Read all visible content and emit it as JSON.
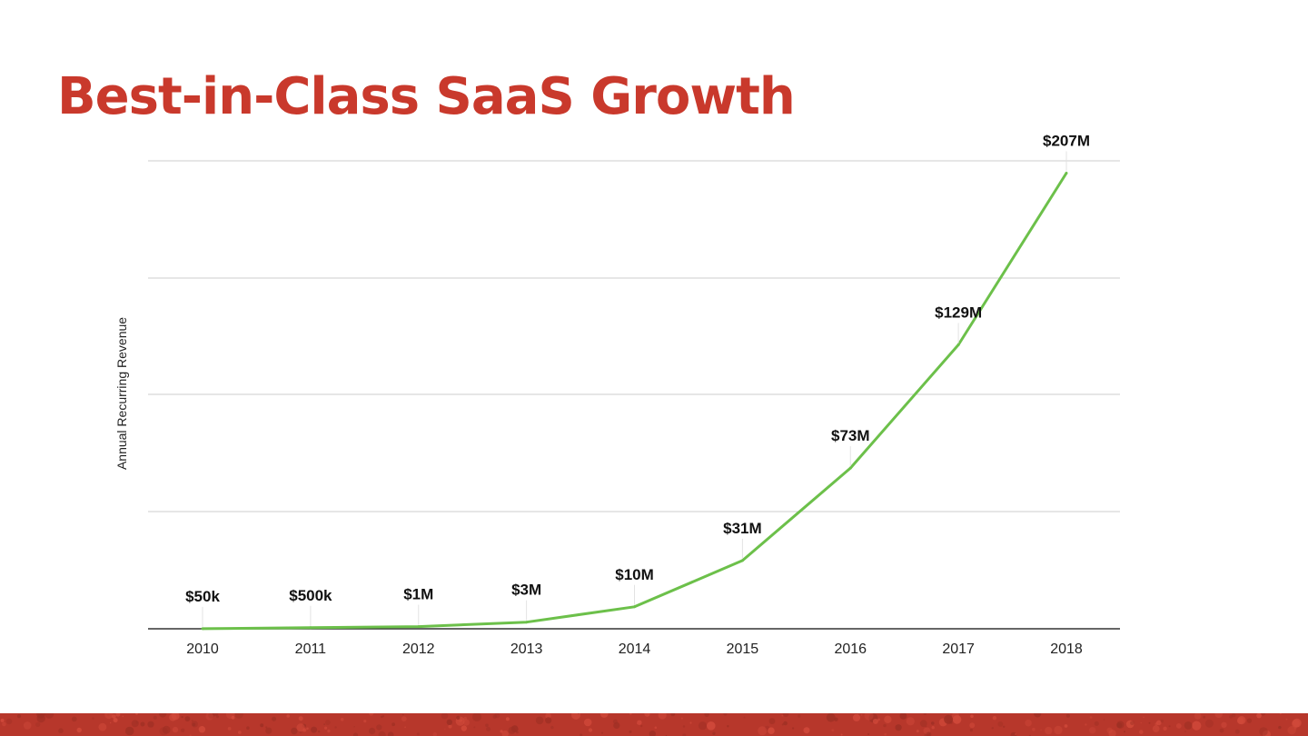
{
  "slide": {
    "title": "Best-in-Class SaaS Growth"
  },
  "colors": {
    "title": "#c9392c",
    "line": "#6cc04a",
    "grid": "#cccccc",
    "axis": "#333333",
    "footer": "#b7372b"
  },
  "chart_data": {
    "type": "line",
    "title": "",
    "xlabel": "",
    "ylabel": "Annual Recurring Revenue",
    "ylim": [
      0,
      220
    ],
    "y_unit": "$M",
    "grid": true,
    "legend": "none",
    "categories": [
      "2010",
      "2011",
      "2012",
      "2013",
      "2014",
      "2015",
      "2016",
      "2017",
      "2018"
    ],
    "series": [
      {
        "values": [
          0.05,
          0.5,
          1,
          3,
          10,
          31,
          73,
          129,
          207
        ],
        "labels": [
          "$50k",
          "$500k",
          "$1M",
          "$3M",
          "$10M",
          "$31M",
          "$73M",
          "$129M",
          "$207M"
        ]
      }
    ]
  }
}
